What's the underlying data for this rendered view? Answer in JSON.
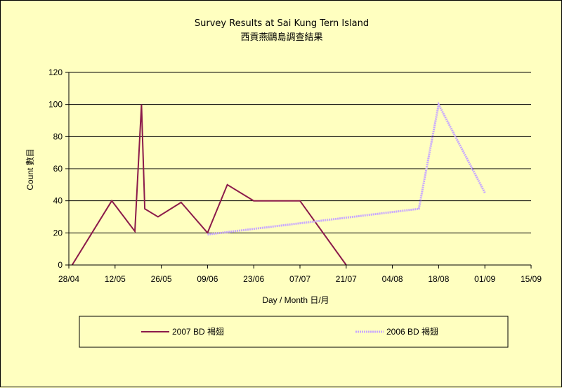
{
  "chart_data": {
    "type": "line",
    "title": "Survey Results at Sai Kung Tern Island",
    "subtitle": "西貢燕鷗島調查結果",
    "xlabel": "Day / Month  日/月",
    "ylabel": "Count 數目",
    "ylim": [
      0,
      120
    ],
    "yticks": [
      0,
      20,
      40,
      60,
      80,
      100,
      120
    ],
    "xticks": [
      "28/04",
      "12/05",
      "26/05",
      "09/06",
      "23/06",
      "07/07",
      "21/07",
      "04/08",
      "18/08",
      "01/09",
      "15/09"
    ],
    "grid": true,
    "legend_position": "bottom",
    "series": [
      {
        "name": "2007 BD 褐翅",
        "color": "#8b1a4a",
        "style": "solid",
        "points": [
          [
            "29/04",
            0
          ],
          [
            "11/05",
            40
          ],
          [
            "18/05",
            21
          ],
          [
            "20/05",
            100
          ],
          [
            "21/05",
            35
          ],
          [
            "25/05",
            30
          ],
          [
            "01/06",
            39
          ],
          [
            "09/06",
            20
          ],
          [
            "15/06",
            50
          ],
          [
            "23/06",
            40
          ],
          [
            "07/07",
            40
          ],
          [
            "21/07",
            0
          ]
        ]
      },
      {
        "name": "2006 BD 褐翅",
        "color": "#c8a8ff",
        "style": "dotted",
        "points": [
          [
            "09/06",
            19
          ],
          [
            "12/08",
            35
          ],
          [
            "18/08",
            100
          ],
          [
            "01/09",
            45
          ]
        ]
      }
    ]
  }
}
